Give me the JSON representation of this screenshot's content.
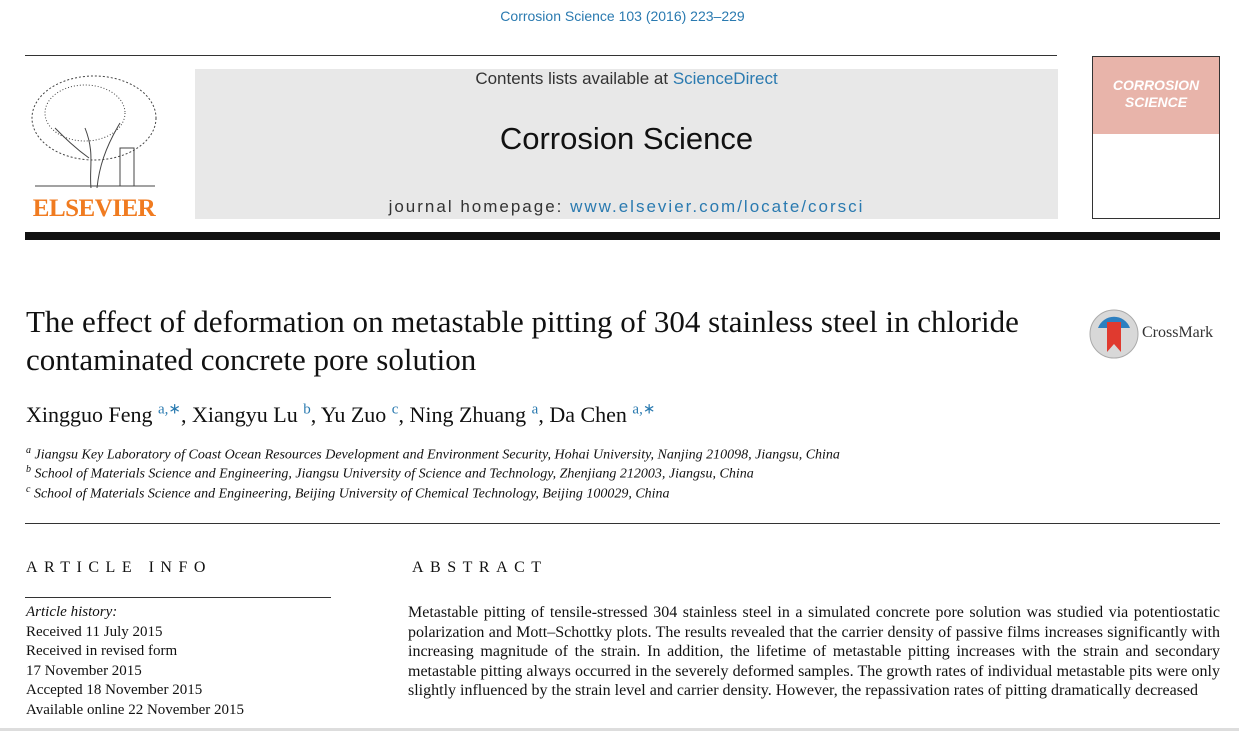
{
  "citation": "Corrosion Science 103 (2016) 223–229",
  "publisher_logo": "ELSEVIER",
  "masthead": {
    "contents_prefix": "Contents lists available at ",
    "sciencedirect": "ScienceDirect",
    "journal": "Corrosion Science",
    "homepage_prefix": "journal homepage: ",
    "homepage_url": "www.elsevier.com/locate/corsci"
  },
  "cover": {
    "title": "CORROSION SCIENCE",
    "color": "#e8b4aa"
  },
  "article": {
    "title": "The effect of deformation on metastable pitting of 304 stainless steel in chloride contaminated concrete pore solution",
    "crossmark": "CrossMark",
    "authors": [
      {
        "name": "Xingguo Feng",
        "sup": "a,∗"
      },
      {
        "name": "Xiangyu Lu",
        "sup": "b"
      },
      {
        "name": "Yu Zuo",
        "sup": "c"
      },
      {
        "name": "Ning Zhuang",
        "sup": "a"
      },
      {
        "name": "Da Chen",
        "sup": "a,∗"
      }
    ],
    "affiliations": [
      {
        "key": "a",
        "text": "Jiangsu Key Laboratory of Coast Ocean Resources Development and Environment Security, Hohai University, Nanjing 210098, Jiangsu, China"
      },
      {
        "key": "b",
        "text": "School of Materials Science and Engineering, Jiangsu University of Science and Technology, Zhenjiang 212003, Jiangsu, China"
      },
      {
        "key": "c",
        "text": "School of Materials Science and Engineering, Beijing University of Chemical Technology, Beijing 100029, China"
      }
    ]
  },
  "info": {
    "heading": "ARTICLE INFO",
    "history_label": "Article history:",
    "history": [
      "Received 11 July 2015",
      "Received in revised form",
      "17 November 2015",
      "Accepted 18 November 2015",
      "Available online 22 November 2015"
    ]
  },
  "abstract": {
    "heading": "ABSTRACT",
    "text": "Metastable pitting of tensile-stressed 304 stainless steel in a simulated concrete pore solution was studied via potentiostatic polarization and Mott–Schottky plots. The results revealed that the carrier density of passive films increases significantly with increasing magnitude of the strain. In addition, the lifetime of metastable pitting increases with the strain and secondary metastable pitting always occurred in the severely deformed samples. The growth rates of individual metastable pits were only slightly influenced by the strain level and carrier density. However, the repassivation rates of pitting dramatically decreased"
  }
}
